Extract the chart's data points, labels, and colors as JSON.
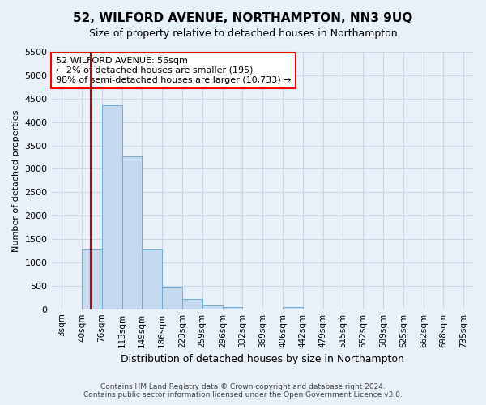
{
  "title": "52, WILFORD AVENUE, NORTHAMPTON, NN3 9UQ",
  "subtitle": "Size of property relative to detached houses in Northampton",
  "xlabel": "Distribution of detached houses by size in Northampton",
  "ylabel": "Number of detached properties",
  "footer_line1": "Contains HM Land Registry data © Crown copyright and database right 2024.",
  "footer_line2": "Contains public sector information licensed under the Open Government Licence v3.0.",
  "bin_edges_sqm": [
    3,
    40,
    76,
    113,
    149,
    186,
    223,
    259,
    296,
    332,
    369,
    406,
    442,
    479,
    515,
    552,
    589,
    625,
    662,
    698,
    735
  ],
  "bin_labels": [
    "3sqm",
    "40sqm",
    "76sqm",
    "113sqm",
    "149sqm",
    "186sqm",
    "223sqm",
    "259sqm",
    "296sqm",
    "332sqm",
    "369sqm",
    "406sqm",
    "442sqm",
    "479sqm",
    "515sqm",
    "552sqm",
    "589sqm",
    "625sqm",
    "662sqm",
    "698sqm",
    "735sqm"
  ],
  "bar_values": [
    0,
    1275,
    4350,
    3275,
    1275,
    475,
    225,
    75,
    50,
    0,
    0,
    50,
    0,
    0,
    0,
    0,
    0,
    0,
    0,
    0
  ],
  "bar_color": "#c5d9ef",
  "bar_edge_color": "#6aaed6",
  "ylim": [
    0,
    5500
  ],
  "yticks": [
    0,
    500,
    1000,
    1500,
    2000,
    2500,
    3000,
    3500,
    4000,
    4500,
    5000,
    5500
  ],
  "property_sqm": 56,
  "annotation_line1": "52 WILFORD AVENUE: 56sqm",
  "annotation_line2": "← 2% of detached houses are smaller (195)",
  "annotation_line3": "98% of semi-detached houses are larger (10,733) →",
  "annotation_box_color": "white",
  "annotation_box_edge_color": "red",
  "red_line_color": "#cc0000",
  "grid_color": "#c8d8e8",
  "background_color": "#e8f0f8",
  "plot_bg_color": "#e8f0f8",
  "title_fontsize": 11,
  "subtitle_fontsize": 9
}
